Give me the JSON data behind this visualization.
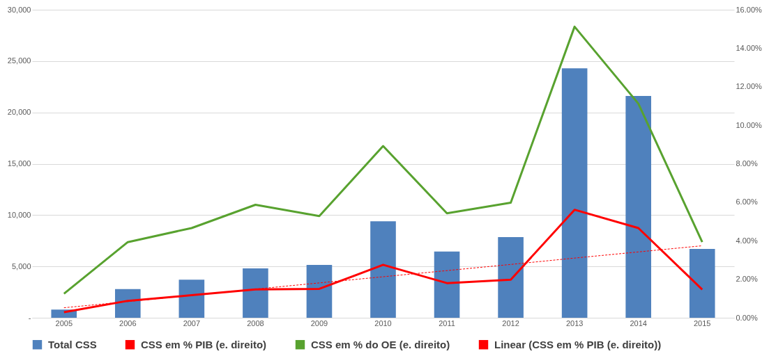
{
  "chart_data": {
    "type": "bar",
    "categories": [
      "2005",
      "2006",
      "2007",
      "2008",
      "2009",
      "2010",
      "2011",
      "2012",
      "2013",
      "2014",
      "2015"
    ],
    "series": [
      {
        "name": "Total CSS",
        "color": "#4f81bd",
        "values": [
          800,
          2800,
          3700,
          4800,
          5150,
          9400,
          6450,
          7850,
          24300,
          21600,
          6700
        ]
      },
      {
        "name": "CSS em % PIB (e. direito)",
        "type": "line",
        "axis": "y2",
        "color": "#ff0000",
        "line_style": "solid",
        "values": [
          0.29,
          0.88,
          1.17,
          1.47,
          1.5,
          2.75,
          1.8,
          1.98,
          5.61,
          4.66,
          1.47
        ]
      },
      {
        "name": "CSS em % do OE (e. direito)",
        "type": "line",
        "axis": "y2",
        "color": "#58a22f",
        "line_style": "solid",
        "values": [
          1.25,
          3.93,
          4.66,
          5.87,
          5.28,
          8.92,
          5.43,
          5.98,
          15.12,
          11.12,
          3.93
        ]
      },
      {
        "name": "Linear (CSS em % PIB (e. direito))",
        "type": "line",
        "axis": "y2",
        "color": "#ff0000",
        "line_style": "dashed",
        "values": [
          0.52,
          0.84,
          1.16,
          1.49,
          1.81,
          2.13,
          2.45,
          2.77,
          3.1,
          3.42,
          3.74
        ]
      }
    ],
    "ylim": [
      0,
      30000
    ],
    "yticks": [
      {
        "value": 0,
        "label": "-"
      },
      {
        "value": 5000,
        "label": "5,000"
      },
      {
        "value": 10000,
        "label": "10,000"
      },
      {
        "value": 15000,
        "label": "15,000"
      },
      {
        "value": 20000,
        "label": "20,000"
      },
      {
        "value": 25000,
        "label": "25,000"
      },
      {
        "value": 30000,
        "label": "30,000"
      }
    ],
    "y2lim": [
      0,
      16
    ],
    "y2ticks": [
      {
        "value": 0,
        "label": "0.00%"
      },
      {
        "value": 2,
        "label": "2.00%"
      },
      {
        "value": 4,
        "label": "4.00%"
      },
      {
        "value": 6,
        "label": "6.00%"
      },
      {
        "value": 8,
        "label": "8.00%"
      },
      {
        "value": 10,
        "label": "10.00%"
      },
      {
        "value": 12,
        "label": "12.00%"
      },
      {
        "value": 14,
        "label": "14.00%"
      },
      {
        "value": 16,
        "label": "16.00%"
      }
    ],
    "grid": "y",
    "legend": "bottom"
  }
}
